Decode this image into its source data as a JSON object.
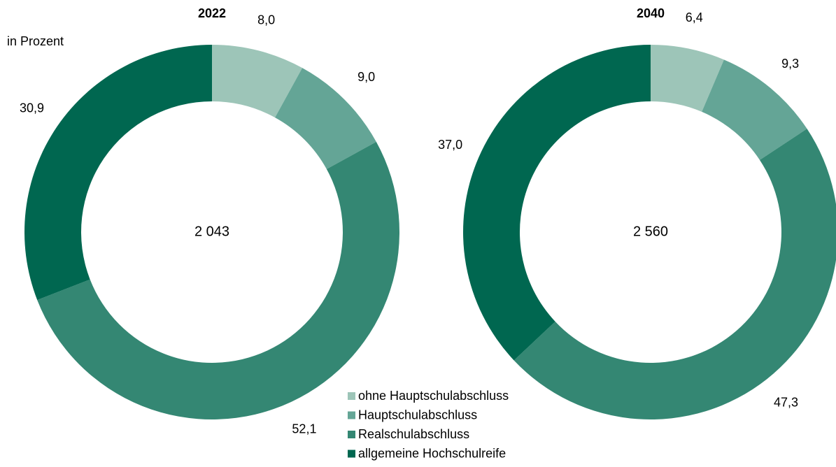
{
  "chart_data": [
    {
      "type": "pie",
      "title": "2022",
      "subtitle": "in Prozent",
      "center_label": "2 043",
      "categories": [
        "ohne Hauptschulabschluss",
        "Hauptschulabschluss",
        "Realschulabschluss",
        "allgemeine Hochschulreife"
      ],
      "values": [
        8.0,
        9.0,
        52.1,
        30.9
      ],
      "value_labels": [
        "8,0",
        "9,0",
        "52,1",
        "30,9"
      ],
      "colors": [
        "#9dc5b8",
        "#64a596",
        "#348773",
        "#006750"
      ]
    },
    {
      "type": "pie",
      "title": "2040",
      "center_label": "2 560",
      "categories": [
        "ohne Hauptschulabschluss",
        "Hauptschulabschluss",
        "Realschulabschluss",
        "allgemeine Hochschulreife"
      ],
      "values": [
        6.4,
        9.3,
        47.3,
        37.0
      ],
      "value_labels": [
        "6,4",
        "9,3",
        "47,3",
        "37,0"
      ],
      "colors": [
        "#9dc5b8",
        "#64a596",
        "#348773",
        "#006750"
      ]
    }
  ]
}
